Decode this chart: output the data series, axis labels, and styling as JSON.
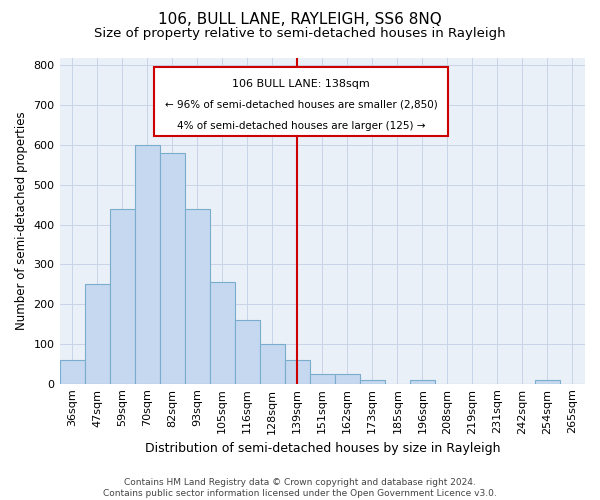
{
  "title": "106, BULL LANE, RAYLEIGH, SS6 8NQ",
  "subtitle": "Size of property relative to semi-detached houses in Rayleigh",
  "xlabel": "Distribution of semi-detached houses by size in Rayleigh",
  "ylabel": "Number of semi-detached properties",
  "footer_line1": "Contains HM Land Registry data © Crown copyright and database right 2024.",
  "footer_line2": "Contains public sector information licensed under the Open Government Licence v3.0.",
  "categories": [
    "36sqm",
    "47sqm",
    "59sqm",
    "70sqm",
    "82sqm",
    "93sqm",
    "105sqm",
    "116sqm",
    "128sqm",
    "139sqm",
    "151sqm",
    "162sqm",
    "173sqm",
    "185sqm",
    "196sqm",
    "208sqm",
    "219sqm",
    "231sqm",
    "242sqm",
    "254sqm",
    "265sqm"
  ],
  "values": [
    60,
    250,
    440,
    600,
    580,
    440,
    255,
    160,
    100,
    60,
    25,
    25,
    10,
    0,
    10,
    0,
    0,
    0,
    0,
    10,
    0
  ],
  "bar_color": "#c5d8f0",
  "bar_edge_color": "#7aaccc",
  "vline_color": "#cc0000",
  "annotation_line1": "106 BULL LANE: 138sqm",
  "annotation_line2": "← 96% of semi-detached houses are smaller (2,850)",
  "annotation_line3": "4% of semi-detached houses are larger (125) →",
  "ylim": [
    0,
    820
  ],
  "yticks": [
    0,
    100,
    200,
    300,
    400,
    500,
    600,
    700,
    800
  ],
  "grid_color": "#c8d4e8",
  "bg_color": "#eaf0f8",
  "title_fontsize": 11,
  "subtitle_fontsize": 9.5,
  "ylabel_fontsize": 8.5,
  "xlabel_fontsize": 9,
  "tick_fontsize": 8,
  "footer_fontsize": 6.5,
  "ann_fontsize": 8
}
